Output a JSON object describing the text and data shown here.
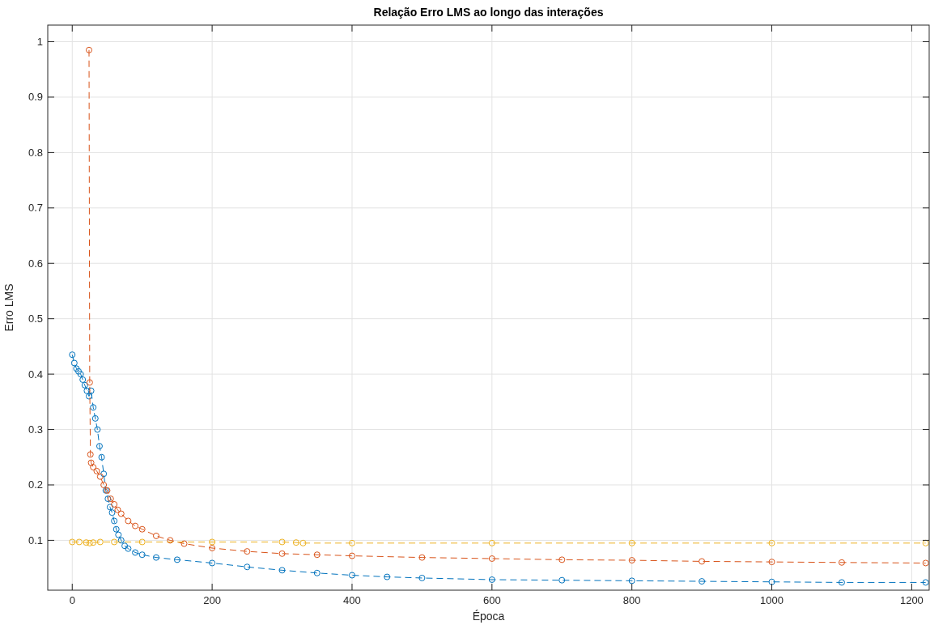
{
  "chart_data": {
    "type": "line",
    "title": "Relação Erro LMS ao longo das interações",
    "xlabel": "Época",
    "ylabel": "Erro LMS",
    "xlim": [
      -35,
      1225
    ],
    "ylim": [
      0.01,
      1.03
    ],
    "xticks": [
      0,
      200,
      400,
      600,
      800,
      1000,
      1200
    ],
    "yticks": [
      0.1,
      0.2,
      0.3,
      0.4,
      0.5,
      0.6,
      0.7,
      0.8,
      0.9,
      1
    ],
    "grid": true,
    "marker": "circle",
    "line_style": "dashed",
    "series": [
      {
        "color": "#0072bd",
        "x": [
          0,
          3,
          6,
          9,
          12,
          15,
          18,
          21,
          24,
          27,
          30,
          33,
          36,
          39,
          42,
          45,
          48,
          51,
          54,
          57,
          60,
          63,
          66,
          70,
          75,
          80,
          90,
          100,
          120,
          150,
          200,
          250,
          300,
          350,
          400,
          450,
          500,
          600,
          700,
          800,
          900,
          1000,
          1100,
          1220
        ],
        "values": [
          0.435,
          0.42,
          0.41,
          0.405,
          0.4,
          0.39,
          0.38,
          0.37,
          0.36,
          0.37,
          0.34,
          0.32,
          0.3,
          0.27,
          0.25,
          0.22,
          0.19,
          0.175,
          0.16,
          0.15,
          0.135,
          0.12,
          0.11,
          0.1,
          0.09,
          0.085,
          0.078,
          0.074,
          0.069,
          0.065,
          0.059,
          0.052,
          0.046,
          0.041,
          0.037,
          0.034,
          0.032,
          0.029,
          0.028,
          0.027,
          0.026,
          0.025,
          0.024,
          0.024
        ]
      },
      {
        "color": "#d95319",
        "x": [
          24,
          25,
          26,
          27,
          30,
          35,
          40,
          45,
          50,
          55,
          60,
          65,
          70,
          80,
          90,
          100,
          120,
          140,
          160,
          200,
          250,
          300,
          350,
          400,
          500,
          600,
          700,
          800,
          900,
          1000,
          1100,
          1220
        ],
        "values": [
          0.985,
          0.385,
          0.255,
          0.24,
          0.232,
          0.225,
          0.215,
          0.2,
          0.19,
          0.175,
          0.165,
          0.155,
          0.148,
          0.135,
          0.126,
          0.12,
          0.108,
          0.1,
          0.094,
          0.086,
          0.08,
          0.076,
          0.074,
          0.072,
          0.069,
          0.067,
          0.065,
          0.064,
          0.062,
          0.061,
          0.06,
          0.059
        ]
      },
      {
        "color": "#edb120",
        "x": [
          0,
          10,
          20,
          25,
          30,
          40,
          60,
          100,
          200,
          300,
          320,
          330,
          400,
          600,
          800,
          1000,
          1220
        ],
        "values": [
          0.097,
          0.097,
          0.096,
          0.095,
          0.096,
          0.097,
          0.097,
          0.097,
          0.097,
          0.097,
          0.096,
          0.095,
          0.095,
          0.095,
          0.095,
          0.095,
          0.095
        ]
      }
    ]
  }
}
